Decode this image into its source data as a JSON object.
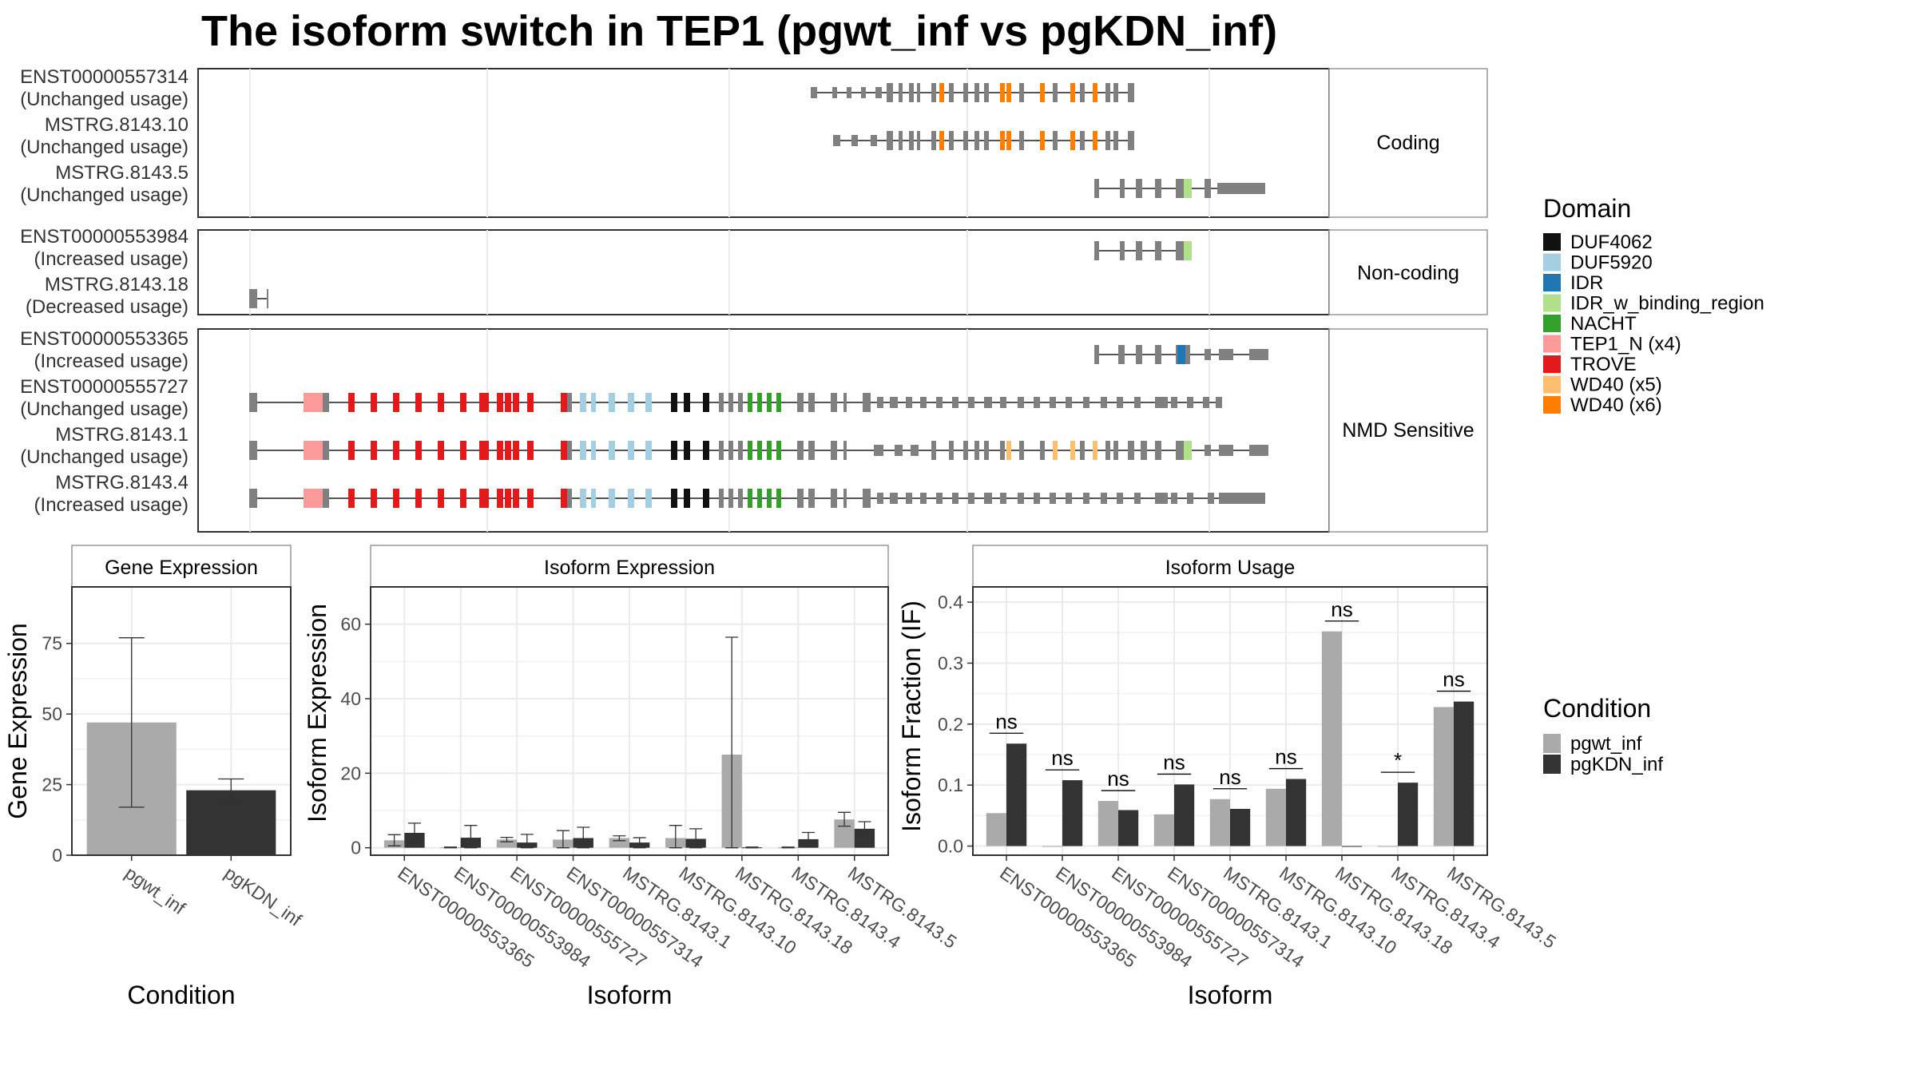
{
  "title": "The isoform switch in TEP1 (pgwt_inf vs pgKDN_inf)",
  "colors": {
    "intron_line": "#555555",
    "exon_gray": "#808080",
    "panel_border": "#333333",
    "strip_border": "#999999",
    "grid": "#ebebeb",
    "pgwt_inf": "#aaaaaa",
    "pgKDN_inf": "#333333"
  },
  "structure_panels": [
    {
      "facet_label": "Coding",
      "isoforms": [
        {
          "name": "ENST00000557314",
          "usage": "(Unchanged usage)"
        },
        {
          "name": "MSTRG.8143.10",
          "usage": "(Unchanged usage)"
        },
        {
          "name": "MSTRG.8143.5",
          "usage": "(Unchanged usage)"
        }
      ]
    },
    {
      "facet_label": "Non-coding",
      "isoforms": [
        {
          "name": "ENST00000553984",
          "usage": "(Increased usage)"
        },
        {
          "name": "MSTRG.8143.18",
          "usage": "(Decreased usage)"
        }
      ]
    },
    {
      "facet_label": "NMD Sensitive",
      "isoforms": [
        {
          "name": "ENST00000553365",
          "usage": "(Increased usage)"
        },
        {
          "name": "ENST00000555727",
          "usage": "(Unchanged usage)"
        },
        {
          "name": "MSTRG.8143.1",
          "usage": "(Unchanged usage)"
        },
        {
          "name": "MSTRG.8143.4",
          "usage": "(Increased usage)"
        }
      ]
    }
  ],
  "domain_legend": {
    "title": "Domain",
    "items": [
      {
        "label": "DUF4062",
        "color": "#111111"
      },
      {
        "label": "DUF5920",
        "color": "#a6cee3"
      },
      {
        "label": "IDR",
        "color": "#1f78b4"
      },
      {
        "label": "IDR_w_binding_region",
        "color": "#b2df8a"
      },
      {
        "label": "NACHT",
        "color": "#33a02c"
      },
      {
        "label": "TEP1_N (x4)",
        "color": "#fb9a99"
      },
      {
        "label": "TROVE",
        "color": "#e31a1c"
      },
      {
        "label": "WD40 (x5)",
        "color": "#fdbf6f"
      },
      {
        "label": "WD40 (x6)",
        "color": "#ff7f00"
      }
    ]
  },
  "condition_legend": {
    "title": "Condition",
    "items": [
      {
        "label": "pgwt_inf",
        "color": "#aaaaaa"
      },
      {
        "label": "pgKDN_inf",
        "color": "#333333"
      }
    ]
  },
  "chart_data": [
    {
      "type": "bar",
      "panel_title": "Gene Expression",
      "categories": [
        "pgwt_inf",
        "pgKDN_inf"
      ],
      "values": [
        47,
        23
      ],
      "errors": [
        [
          17,
          77
        ],
        [
          19,
          27
        ]
      ],
      "xlabel": "Condition",
      "ylabel": "Gene Expression",
      "ylim": [
        0,
        95
      ],
      "yticks": [
        0,
        25,
        50,
        75
      ]
    },
    {
      "type": "bar",
      "panel_title": "Isoform Expression",
      "categories": [
        "ENST00000553365",
        "ENST00000553984",
        "ENST00000555727",
        "ENST00000557314",
        "MSTRG.8143.1",
        "MSTRG.8143.10",
        "MSTRG.8143.18",
        "MSTRG.8143.4",
        "MSTRG.8143.5"
      ],
      "series": [
        {
          "name": "pgwt_inf",
          "values": [
            2.0,
            0.1,
            2.2,
            2.2,
            2.6,
            2.6,
            25.0,
            0.1,
            7.6
          ],
          "errors": [
            [
              0.5,
              3.5
            ],
            [
              0.0,
              0.2
            ],
            [
              1.6,
              2.8
            ],
            [
              0.0,
              4.6
            ],
            [
              1.9,
              3.2
            ],
            [
              0.0,
              6.0
            ],
            [
              0.0,
              56.5
            ],
            [
              0.0,
              0.2
            ],
            [
              5.8,
              9.5
            ]
          ]
        },
        {
          "name": "pgKDN_inf",
          "values": [
            4.0,
            2.7,
            1.4,
            2.6,
            1.4,
            2.4,
            0.1,
            2.3,
            5.1
          ],
          "errors": [
            [
              1.4,
              6.6
            ],
            [
              0.0,
              6.0
            ],
            [
              0.0,
              3.6
            ],
            [
              0.0,
              5.5
            ],
            [
              0.0,
              2.7
            ],
            [
              0.0,
              5.1
            ],
            [
              0.0,
              0.2
            ],
            [
              1.0,
              4.1
            ],
            [
              3.4,
              7.0
            ]
          ]
        }
      ],
      "xlabel": "Isoform",
      "ylabel": "Isoform Expression",
      "ylim": [
        -2,
        70
      ],
      "yticks": [
        0,
        20,
        40,
        60
      ]
    },
    {
      "type": "bar",
      "panel_title": "Isoform Usage",
      "categories": [
        "ENST00000553365",
        "ENST00000553984",
        "ENST00000555727",
        "ENST00000557314",
        "MSTRG.8143.1",
        "MSTRG.8143.10",
        "MSTRG.8143.18",
        "MSTRG.8143.4",
        "MSTRG.8143.5"
      ],
      "series": [
        {
          "name": "pgwt_inf",
          "values": [
            0.054,
            0.0,
            0.074,
            0.052,
            0.077,
            0.094,
            0.352,
            0.0,
            0.228
          ]
        },
        {
          "name": "pgKDN_inf",
          "values": [
            0.168,
            0.108,
            0.059,
            0.101,
            0.061,
            0.11,
            0.0,
            0.104,
            0.237
          ]
        }
      ],
      "significance": [
        "ns",
        "ns",
        "ns",
        "ns",
        "ns",
        "ns",
        "ns",
        "*",
        "ns"
      ],
      "xlabel": "Isoform",
      "ylabel": "Isoform Fraction (IF)",
      "ylim": [
        -0.015,
        0.425
      ],
      "yticks": [
        0.0,
        0.1,
        0.2,
        0.3,
        0.4
      ],
      "ytick_labels": [
        "0.0",
        "0.1",
        "0.2",
        "0.3",
        "0.4"
      ]
    }
  ]
}
